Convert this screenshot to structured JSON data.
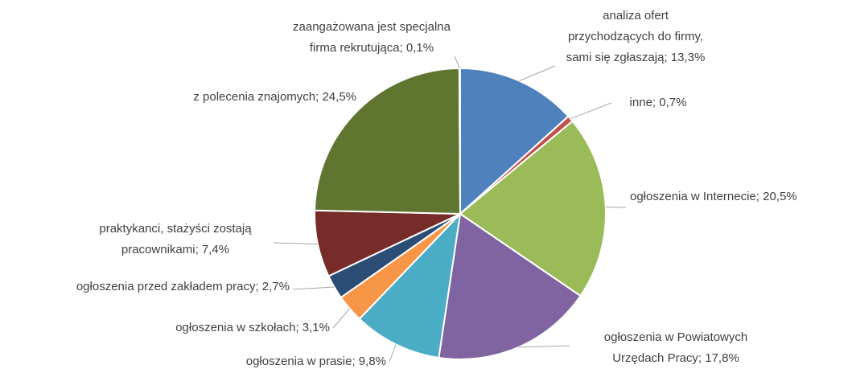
{
  "chart_data": {
    "type": "pie",
    "values": [
      13.3,
      0.7,
      20.5,
      17.8,
      9.8,
      3.1,
      2.7,
      7.4,
      24.5,
      0.1
    ],
    "value_labels": [
      [
        "analiza ofert",
        "przychodzących do firmy,",
        "sami się zgłaszają; 13,3%"
      ],
      [
        "inne; 0,7%"
      ],
      [
        "ogłoszenia w Internecie; 20,5%"
      ],
      [
        "ogłoszenia w Powiatowych",
        "Urzędach Pracy; 17,8%"
      ],
      [
        "ogłoszenia w prasie; 9,8%"
      ],
      [
        "ogłoszenia w szkołach; 3,1%"
      ],
      [
        "ogłoszenia przed zakładem pracy; 2,7%"
      ],
      [
        "praktykanci, stażyści zostają",
        "pracownikami; 7,4%"
      ],
      [
        "z polecenia znajomych; 24,5%"
      ],
      [
        "zaangażowana jest specjalna",
        "firma rekrutująca; 0,1%"
      ]
    ],
    "colors": [
      "#4f81bd",
      "#c0504d",
      "#9bbb59",
      "#8064a2",
      "#4bacc6",
      "#f79646",
      "#2c4d75",
      "#772c2a",
      "#5f7530",
      "#729aca"
    ]
  }
}
